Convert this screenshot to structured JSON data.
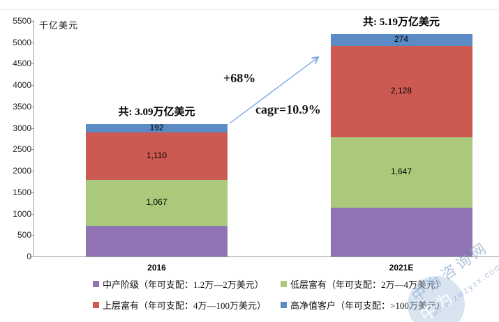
{
  "chart_data": {
    "type": "bar",
    "stacked": true,
    "categories": [
      "2016",
      "2021E"
    ],
    "series": [
      {
        "name": "中产阶级（年可支配：1.2万—2万美元）",
        "color": "#8F73B2",
        "values": [
          721,
          1141
        ],
        "labels": [
          "",
          ""
        ]
      },
      {
        "name": "低层富有（年可支配：2万—4万美元）",
        "color": "#ABC97A",
        "values": [
          1067,
          1647
        ],
        "labels": [
          "1,067",
          "1,647"
        ]
      },
      {
        "name": "上层富有（年可支配：4万—100万美元）",
        "color": "#CC5A52",
        "values": [
          1110,
          2128
        ],
        "labels": [
          "1,110",
          "2,128"
        ]
      },
      {
        "name": "高净值客户（年可支配：>100万美元）",
        "color": "#5A8BC4",
        "values": [
          192,
          274
        ],
        "labels": [
          "192",
          "274"
        ]
      }
    ],
    "totals": [
      "共: 3.09万亿美元",
      "共: 5.19万亿美元"
    ],
    "annotations": [
      {
        "text": "+68%"
      },
      {
        "text": "cagr=10.9%"
      }
    ],
    "title": "",
    "xlabel": "",
    "ylabel": "千亿美元",
    "ylim": [
      0,
      5500
    ],
    "ytick_step": 500,
    "grid": false,
    "legend_position": "bottom",
    "arrow_color": "#7EA6DC"
  },
  "watermark": {
    "brand_text": "中为咨询网",
    "site_text": "www.zwzyzx.com",
    "stamp_text": "中为"
  }
}
